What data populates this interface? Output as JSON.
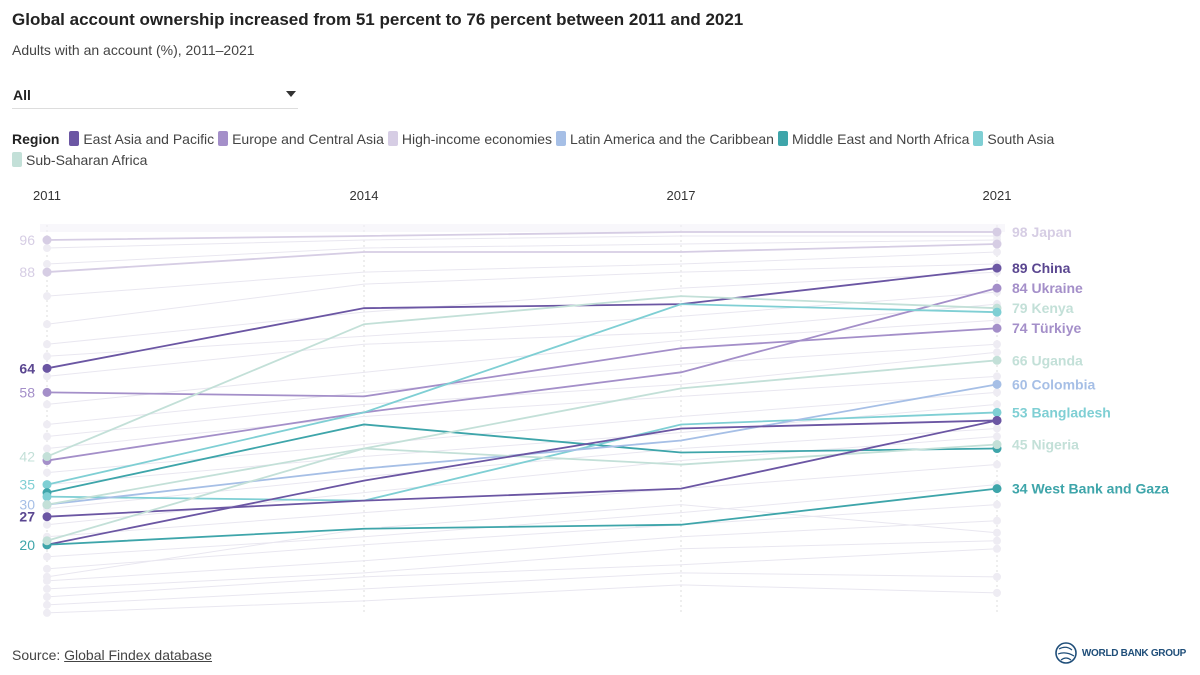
{
  "header": {
    "title": "Global account ownership increased from 51 percent to 76 percent between 2011 and 2021",
    "subtitle": "Adults with an account (%), 2011–2021"
  },
  "filter": {
    "selected": "All"
  },
  "legend": {
    "label": "Region",
    "items": [
      {
        "name": "East Asia and Pacific",
        "color": "#6b56a3"
      },
      {
        "name": "Europe and Central Asia",
        "color": "#a48fc9"
      },
      {
        "name": "High-income economies",
        "color": "#d6cde4"
      },
      {
        "name": "Latin America and the Caribbean",
        "color": "#a6bfe6"
      },
      {
        "name": "Middle East and North Africa",
        "color": "#3ea5aa"
      },
      {
        "name": "South Asia",
        "color": "#7fcfd4"
      },
      {
        "name": "Sub-Saharan Africa",
        "color": "#c3e0d8"
      }
    ]
  },
  "footer": {
    "source_prefix": "Source: ",
    "source_link": "Global Findex database",
    "logo_text": "WORLD BANK GROUP"
  },
  "chart_data": {
    "type": "line",
    "subtype": "slope",
    "title": "Global account ownership increased from 51 percent to 76 percent between 2011 and 2021",
    "ylabel": "Adults with an account (%)",
    "x": [
      "2011",
      "2014",
      "2017",
      "2021"
    ],
    "ylim": [
      3,
      100
    ],
    "highlighted": [
      {
        "region": 2,
        "values": [
          96,
          97,
          98,
          98
        ],
        "left_label": "96",
        "right_label": "98 Japan"
      },
      {
        "region": 2,
        "values": [
          88,
          93,
          93,
          95
        ],
        "left_label": "88",
        "right_label": ""
      },
      {
        "region": 0,
        "values": [
          64,
          79,
          80,
          89
        ],
        "left_label": "64",
        "right_label": "89 China"
      },
      {
        "region": 1,
        "values": [
          58,
          57,
          69,
          74
        ],
        "left_label": "58",
        "right_label": "74 Türkiye"
      },
      {
        "region": 1,
        "values": [
          41,
          53,
          63,
          84
        ],
        "left_label": "",
        "right_label": "84 Ukraine"
      },
      {
        "region": 6,
        "values": [
          42,
          75,
          82,
          79
        ],
        "left_label": "42",
        "right_label": "79 Kenya"
      },
      {
        "region": 5,
        "values": [
          35,
          53,
          80,
          78
        ],
        "left_label": "35",
        "right_label": ""
      },
      {
        "region": 4,
        "values": [
          33,
          50,
          43,
          44
        ],
        "left_label": "",
        "right_label": ""
      },
      {
        "region": 5,
        "values": [
          32,
          31,
          50,
          53
        ],
        "left_label": "",
        "right_label": "53 Bangladesh"
      },
      {
        "region": 3,
        "values": [
          30,
          39,
          46,
          60
        ],
        "left_label": "30",
        "right_label": "60 Colombia"
      },
      {
        "region": 6,
        "values": [
          30,
          44,
          40,
          45
        ],
        "left_label": "",
        "right_label": "45 Nigeria"
      },
      {
        "region": 0,
        "values": [
          27,
          31,
          34,
          51
        ],
        "left_label": "27",
        "right_label": ""
      },
      {
        "region": 0,
        "values": [
          20,
          36,
          49,
          51
        ],
        "left_label": "",
        "right_label": ""
      },
      {
        "region": 4,
        "values": [
          20,
          24,
          25,
          34
        ],
        "left_label": "20",
        "right_label": "34 West Bank and Gaza"
      },
      {
        "region": 6,
        "values": [
          21,
          44,
          59,
          66
        ],
        "left_label": "",
        "right_label": "66 Uganda"
      }
    ],
    "background": [
      [
        94,
        96,
        97,
        97
      ],
      [
        90,
        94,
        95,
        96
      ],
      [
        82,
        88,
        90,
        93
      ],
      [
        75,
        85,
        88,
        90
      ],
      [
        70,
        78,
        84,
        88
      ],
      [
        67,
        72,
        77,
        83
      ],
      [
        62,
        70,
        73,
        80
      ],
      [
        55,
        63,
        71,
        76
      ],
      [
        50,
        58,
        65,
        70
      ],
      [
        47,
        55,
        60,
        68
      ],
      [
        44,
        52,
        57,
        62
      ],
      [
        38,
        45,
        52,
        58
      ],
      [
        35,
        42,
        48,
        55
      ],
      [
        29,
        37,
        44,
        49
      ],
      [
        25,
        33,
        41,
        47
      ],
      [
        22,
        28,
        34,
        40
      ],
      [
        17,
        22,
        28,
        35
      ],
      [
        14,
        20,
        25,
        30
      ],
      [
        11,
        16,
        22,
        26
      ],
      [
        9,
        13,
        19,
        21
      ],
      [
        7,
        12,
        15,
        19
      ],
      [
        5,
        9,
        13,
        12
      ],
      [
        3,
        6,
        10,
        8
      ],
      [
        12,
        24,
        30,
        23
      ]
    ]
  }
}
